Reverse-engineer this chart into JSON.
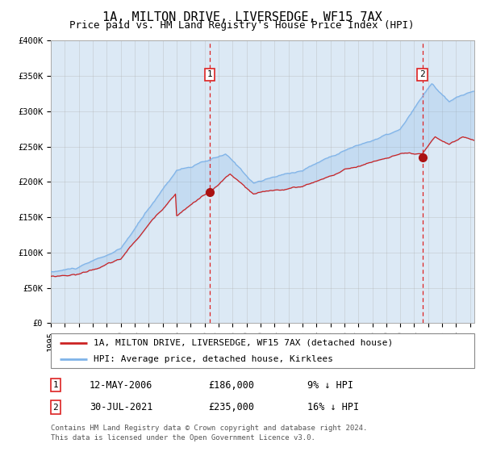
{
  "title": "1A, MILTON DRIVE, LIVERSEDGE, WF15 7AX",
  "subtitle": "Price paid vs. HM Land Registry's House Price Index (HPI)",
  "legend_property": "1A, MILTON DRIVE, LIVERSEDGE, WF15 7AX (detached house)",
  "legend_hpi": "HPI: Average price, detached house, Kirklees",
  "footnote1": "Contains HM Land Registry data © Crown copyright and database right 2024.",
  "footnote2": "This data is licensed under the Open Government Licence v3.0.",
  "annotation1_label": "1",
  "annotation1_date": "12-MAY-2006",
  "annotation1_price": "£186,000",
  "annotation1_pct": "9% ↓ HPI",
  "annotation2_label": "2",
  "annotation2_date": "30-JUL-2021",
  "annotation2_price": "£235,000",
  "annotation2_pct": "16% ↓ HPI",
  "ax1_x": 2006.36,
  "ax2_x": 2021.58,
  "ax1_y_price": 186000,
  "ax2_y_price": 235000,
  "ylim": [
    0,
    400000
  ],
  "xlim_start": 1995.0,
  "xlim_end": 2025.3,
  "plot_bg": "#dce9f5",
  "grid_color": "#b0b0b0",
  "hpi_color": "#7fb3e8",
  "property_color": "#cc2222",
  "vline_color": "#dd2222",
  "dot_color": "#aa1111",
  "title_fontsize": 11,
  "subtitle_fontsize": 9,
  "tick_fontsize": 7.5,
  "legend_fontsize": 8
}
